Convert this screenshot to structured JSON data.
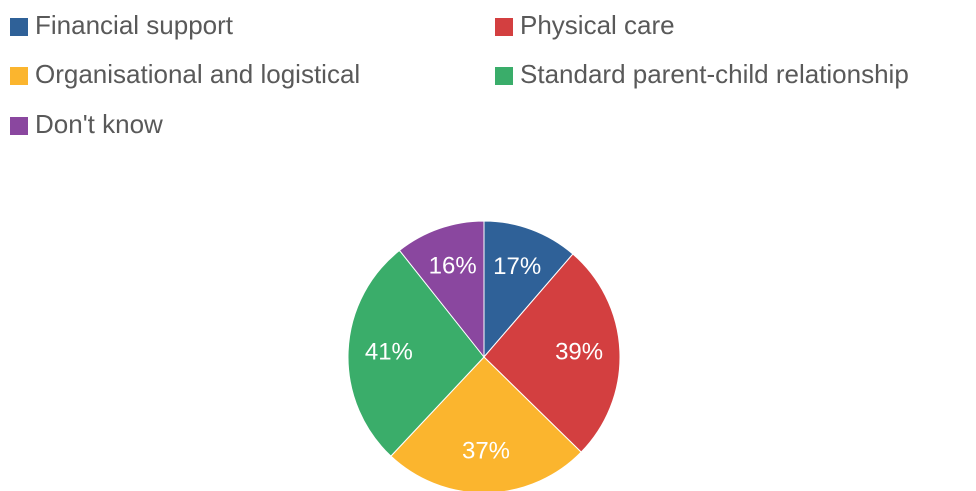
{
  "chart_data": {
    "type": "pie",
    "categories": [
      "Financial support",
      "Physical care",
      "Organisational and logistical",
      "Standard parent-child relationship",
      "Don't know"
    ],
    "values": [
      17,
      39,
      37,
      41,
      16
    ],
    "value_labels": [
      "17%",
      "39%",
      "37%",
      "41%",
      "16%"
    ],
    "colors": [
      "#2f6198",
      "#d33f40",
      "#fbb52e",
      "#3aad6a",
      "#8a479f"
    ],
    "legend": "top"
  }
}
